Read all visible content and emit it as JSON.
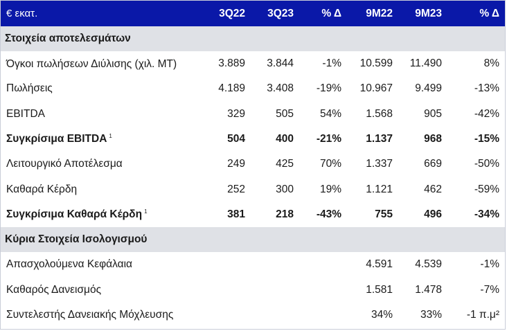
{
  "header": {
    "unit": "€ εκατ.",
    "columns": [
      "3Q22",
      "3Q23",
      "% Δ",
      "9M22",
      "9M23",
      "% Δ"
    ]
  },
  "sections": [
    {
      "title": "Στοιχεία αποτελεσμάτων",
      "rows": [
        {
          "label": "Όγκοι πωλήσεων Διύλισης (χιλ. ΜΤ)",
          "sup": "",
          "bold": false,
          "values": [
            "3.889",
            "3.844",
            "-1%",
            "10.599",
            "11.490",
            "8%"
          ]
        },
        {
          "label": "Πωλήσεις",
          "sup": "",
          "bold": false,
          "values": [
            "4.189",
            "3.408",
            "-19%",
            "10.967",
            "9.499",
            "-13%"
          ]
        },
        {
          "label": "EBITDA",
          "sup": "",
          "bold": false,
          "values": [
            "329",
            "505",
            "54%",
            "1.568",
            "905",
            "-42%"
          ]
        },
        {
          "label": "Συγκρίσιμα EBITDA",
          "sup": "1",
          "bold": true,
          "values": [
            "504",
            "400",
            "-21%",
            "1.137",
            "968",
            "-15%"
          ]
        },
        {
          "label": "Λειτουργικό Αποτέλεσμα",
          "sup": "",
          "bold": false,
          "values": [
            "249",
            "425",
            "70%",
            "1.337",
            "669",
            "-50%"
          ]
        },
        {
          "label": "Καθαρά Κέρδη",
          "sup": "",
          "bold": false,
          "values": [
            "252",
            "300",
            "19%",
            "1.121",
            "462",
            "-59%"
          ]
        },
        {
          "label": "Συγκρίσιμα Καθαρά Κέρδη",
          "sup": "1",
          "bold": true,
          "values": [
            "381",
            "218",
            "-43%",
            "755",
            "496",
            "-34%"
          ]
        }
      ]
    },
    {
      "title": "Κύρια Στοιχεία Ισολογισμού",
      "rows": [
        {
          "label": "Απασχολούμενα Κεφάλαια",
          "sup": "",
          "bold": false,
          "values": [
            "",
            "",
            "",
            "4.591",
            "4.539",
            "-1%"
          ]
        },
        {
          "label": "Καθαρός Δανεισμός",
          "sup": "",
          "bold": false,
          "values": [
            "",
            "",
            "",
            "1.581",
            "1.478",
            "-7%"
          ]
        },
        {
          "label": "Συντελεστής Δανειακής Μόχλευσης",
          "sup": "",
          "bold": false,
          "values": [
            "",
            "",
            "",
            "34%",
            "33%",
            "-1 π.μ²"
          ]
        }
      ]
    }
  ]
}
